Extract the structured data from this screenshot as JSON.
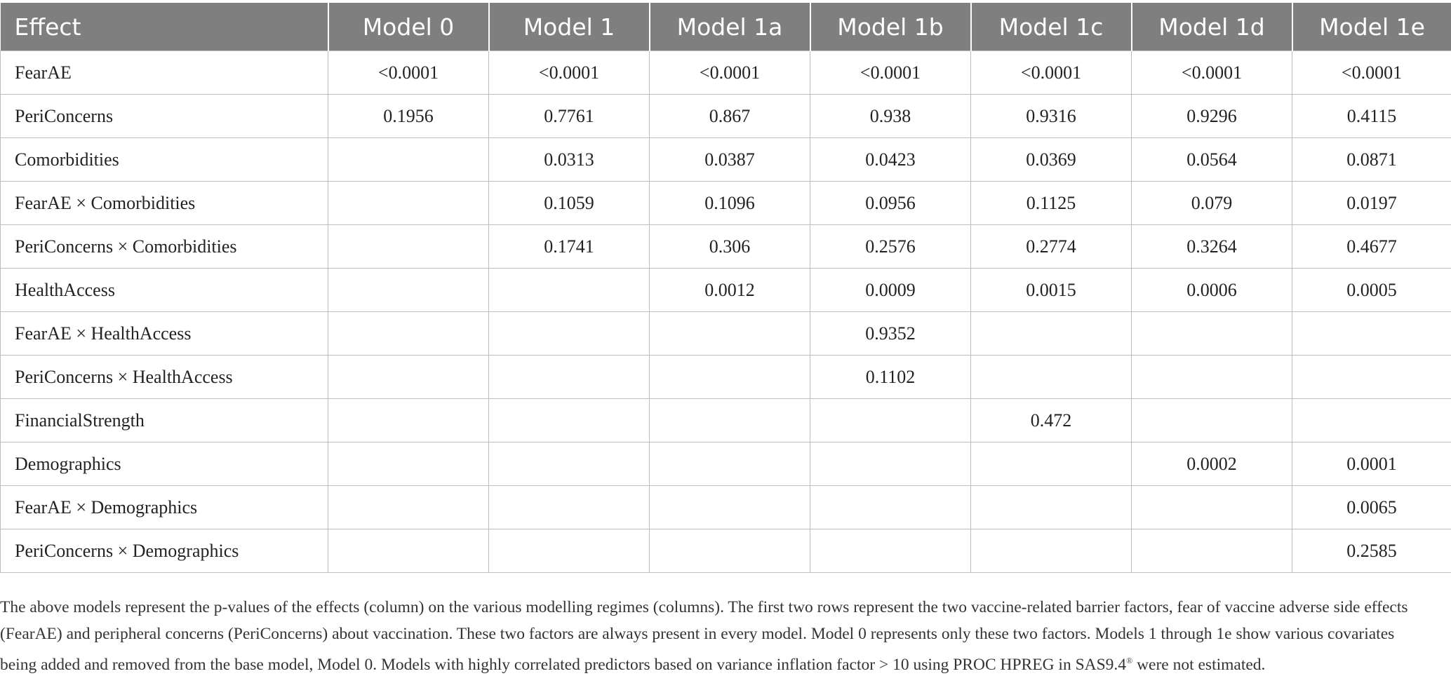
{
  "table": {
    "columns": [
      "Effect",
      "Model 0",
      "Model 1",
      "Model 1a",
      "Model 1b",
      "Model 1c",
      "Model 1d",
      "Model 1e"
    ],
    "rows": [
      {
        "effect": "FearAE",
        "values": [
          "<0.0001",
          "<0.0001",
          "<0.0001",
          "<0.0001",
          "<0.0001",
          "<0.0001",
          "<0.0001"
        ]
      },
      {
        "effect": "PeriConcerns",
        "values": [
          "0.1956",
          "0.7761",
          "0.867",
          "0.938",
          "0.9316",
          "0.9296",
          "0.4115"
        ]
      },
      {
        "effect": "Comorbidities",
        "values": [
          "",
          "0.0313",
          "0.0387",
          "0.0423",
          "0.0369",
          "0.0564",
          "0.0871"
        ]
      },
      {
        "effect": "FearAE × Comorbidities",
        "values": [
          "",
          "0.1059",
          "0.1096",
          "0.0956",
          "0.1125",
          "0.079",
          "0.0197"
        ]
      },
      {
        "effect": "PeriConcerns × Comorbidities",
        "values": [
          "",
          "0.1741",
          "0.306",
          "0.2576",
          "0.2774",
          "0.3264",
          "0.4677"
        ]
      },
      {
        "effect": "HealthAccess",
        "values": [
          "",
          "",
          "0.0012",
          "0.0009",
          "0.0015",
          "0.0006",
          "0.0005"
        ]
      },
      {
        "effect": "FearAE × HealthAccess",
        "values": [
          "",
          "",
          "",
          "0.9352",
          "",
          "",
          ""
        ]
      },
      {
        "effect": "PeriConcerns × HealthAccess",
        "values": [
          "",
          "",
          "",
          "0.1102",
          "",
          "",
          ""
        ]
      },
      {
        "effect": "FinancialStrength",
        "values": [
          "",
          "",
          "",
          "",
          "0.472",
          "",
          ""
        ]
      },
      {
        "effect": "Demographics",
        "values": [
          "",
          "",
          "",
          "",
          "",
          "0.0002",
          "0.0001"
        ]
      },
      {
        "effect": "FearAE × Demographics",
        "values": [
          "",
          "",
          "",
          "",
          "",
          "",
          "0.0065"
        ]
      },
      {
        "effect": "PeriConcerns × Demographics",
        "values": [
          "",
          "",
          "",
          "",
          "",
          "",
          "0.2585"
        ]
      }
    ]
  },
  "footnote": {
    "text_before_sup": "The above models represent the p-values of the effects (column) on the various modelling regimes (columns). The first two rows represent the two vaccine-related barrier factors, fear of vaccine adverse side effects (FearAE) and peripheral concerns (PeriConcerns) about vaccination. These two factors are always present in every model. Model 0 represents only these two factors. Models 1 through 1e show various covariates being added and removed from the base model, Model 0. Models with highly correlated predictors based on variance inflation factor > 10 using PROC HPREG in SAS9.4",
    "sup": "®",
    "text_after_sup": " were not estimated."
  }
}
